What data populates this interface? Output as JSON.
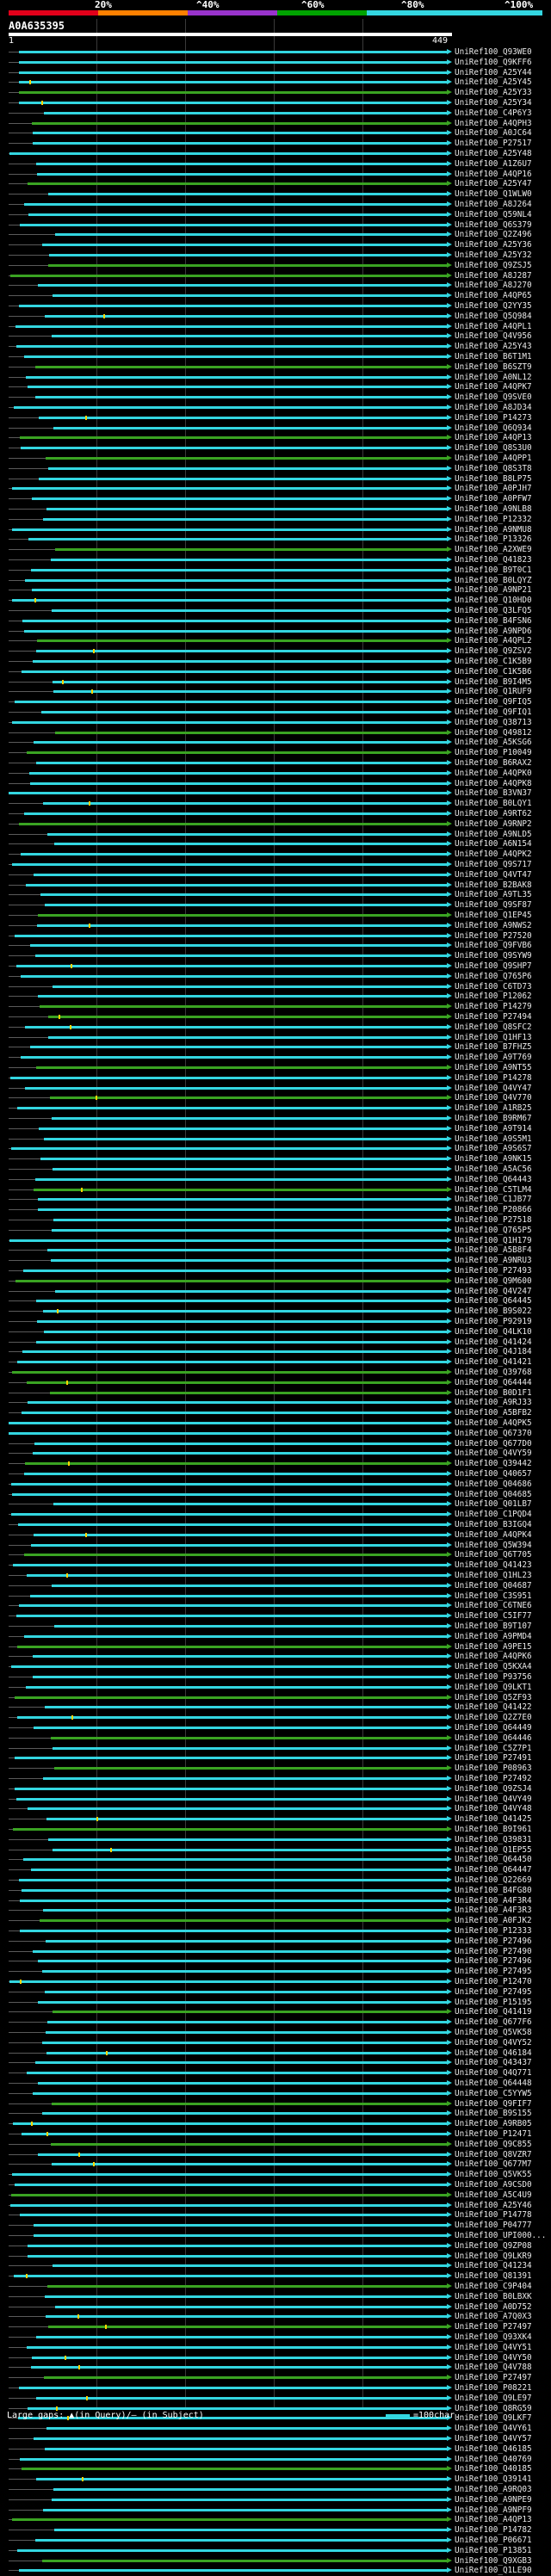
{
  "scale": {
    "labels": [
      "20%",
      "^40%",
      "^60%",
      "^80%",
      "^100%"
    ],
    "colors": [
      "#e2001a",
      "#ff8000",
      "#9933cc",
      "#00a300",
      "#33d6e0"
    ]
  },
  "query": {
    "name": "A0A635395",
    "start": "1",
    "end": "449"
  },
  "hits": [
    "UniRef100_Q93WE0",
    "UniRef100_Q9KFF6",
    "UniRef100_A25Y44",
    "UniRef100_A25Y45",
    "UniRef100_A25Y33",
    "UniRef100_A25Y34",
    "UniRef100_C4P6Y3",
    "UniRef100_A4QPH3",
    "UniRef100_A0JC64",
    "UniRef100_P27517",
    "UniRef100_A25Y48",
    "UniRef100_A1Z6U7",
    "UniRef100_A4QP16",
    "UniRef100_A25Y47",
    "UniRef100_Q1WLW0",
    "UniRef100_A8J264",
    "UniRef100_Q59NL4",
    "UniRef100_Q6S379",
    "UniRef100_Q2Z496",
    "UniRef100_A25Y36",
    "UniRef100_A25Y32",
    "UniRef100_Q9ZSJ5",
    "UniRef100_A8J287",
    "UniRef100_A8J270",
    "UniRef100_A4QP65",
    "UniRef100_Q2YY35",
    "UniRef100_Q5Q984",
    "UniRef100_A4QPL1",
    "UniRef100_Q4V956",
    "UniRef100_A25Y43",
    "UniRef100_B6T1M1",
    "UniRef100_B6SZT9",
    "UniRef100_A0NL12",
    "UniRef100_A4QPK7",
    "UniRef100_Q9SVE0",
    "UniRef100_A8JD34",
    "UniRef100_P14273",
    "UniRef100_Q6Q934",
    "UniRef100_A4QP13",
    "UniRef100_Q8S3U0",
    "UniRef100_A4QPP1",
    "UniRef100_Q8S3T8",
    "UniRef100_B8LP75",
    "UniRef100_A0PJH7",
    "UniRef100_A0PFW7",
    "UniRef100_A9NLB8",
    "UniRef100_P12332",
    "UniRef100_A9NMU8",
    "UniRef100_P13326",
    "UniRef100_A2XWE9",
    "UniRef100_Q41823",
    "UniRef100_B9T0C1",
    "UniRef100_B0LQYZ",
    "UniRef100_A9NP21",
    "UniRef100_Q10HD0",
    "UniRef100_Q3LFQ5",
    "UniRef100_B4FSN6",
    "UniRef100_A9NPD6",
    "UniRef100_A4QPL2",
    "UniRef100_Q9ZSV2",
    "UniRef100_C1K5B9",
    "UniRef100_C1K5B6",
    "UniRef100_B9I4M5",
    "UniRef100_Q1RUF9",
    "UniRef100_Q9FIQ5",
    "UniRef100_Q9FIQ1",
    "UniRef100_Q38713",
    "UniRef100_Q49812",
    "UniRef100_A5KSG6",
    "UniRef100_P10049",
    "UniRef100_B6RAX2",
    "UniRef100_A4QPK0",
    "UniRef100_A4QPK8",
    "UniRef100_B3VN37",
    "UniRef100_B0LQY1",
    "UniRef100_A9RT62",
    "UniRef100_A9RNP2",
    "UniRef100_A9NLD5",
    "UniRef100_A6N154",
    "UniRef100_A4QPK2",
    "UniRef100_Q9S717",
    "UniRef100_Q4VT47",
    "UniRef100_B2BAK8",
    "UniRef100_A9TL35",
    "UniRef100_Q9SF87",
    "UniRef100_Q1EP45",
    "UniRef100_A9NWS2",
    "UniRef100_P27520",
    "UniRef100_Q9FVB6",
    "UniRef100_Q9SYW9",
    "UniRef100_Q9SHP7",
    "UniRef100_Q765P6",
    "UniRef100_C6TD73",
    "UniRef100_P12062",
    "UniRef100_P14279",
    "UniRef100_P27494",
    "UniRef100_Q8SFC2",
    "UniRef100_Q1HF13",
    "UniRef100_B7FHZ5",
    "UniRef100_A9T769",
    "UniRef100_A9NT55",
    "UniRef100_P14278",
    "UniRef100_Q4VY47",
    "UniRef100_Q4V770",
    "UniRef100_A1RB25",
    "UniRef100_B9RM67",
    "UniRef100_A9T914",
    "UniRef100_A9S5M1",
    "UniRef100_A9S6S7",
    "UniRef100_A9NK15",
    "UniRef100_A5AC56",
    "UniRef100_Q64443",
    "UniRef100_C5TLM4",
    "UniRef100_C1JB77",
    "UniRef100_P20866",
    "UniRef100_P27518",
    "UniRef100_Q765P5",
    "UniRef100_Q1H179",
    "UniRef100_A5B8F4",
    "UniRef100_A9NRU3",
    "UniRef100_P27493",
    "UniRef100_Q9M600",
    "UniRef100_Q4V247",
    "UniRef100_Q64445",
    "UniRef100_B9S022",
    "UniRef100_P92919",
    "UniRef100_Q4LK10",
    "UniRef100_Q41424",
    "UniRef100_Q4J184",
    "UniRef100_Q41421",
    "UniRef100_Q39768",
    "UniRef100_Q64444",
    "UniRef100_B0D1F1",
    "UniRef100_A9RJ33",
    "UniRef100_A5BFB2",
    "UniRef100_A4QPK5",
    "UniRef100_Q67370",
    "UniRef100_Q677D0",
    "UniRef100_Q4VY59",
    "UniRef100_Q39442",
    "UniRef100_Q40657",
    "UniRef100_Q04686",
    "UniRef100_Q04685",
    "UniRef100_Q01LB7",
    "UniRef100_C1PQD4",
    "UniRef100_B3IGQ4",
    "UniRef100_A4QPK4",
    "UniRef100_Q5W394",
    "UniRef100_Q6T705",
    "UniRef100_Q41423",
    "UniRef100_Q1HL23",
    "UniRef100_Q04687",
    "UniRef100_C3S951",
    "UniRef100_C6TNE6",
    "UniRef100_C5IF77",
    "UniRef100_B9T107",
    "UniRef100_A9PMD4",
    "UniRef100_A9PE15",
    "UniRef100_A4QPK6",
    "UniRef100_Q5KXA4",
    "UniRef100_P93756",
    "UniRef100_Q9LKT1",
    "UniRef100_Q5ZF93",
    "UniRef100_Q41422",
    "UniRef100_Q2Z7E0",
    "UniRef100_Q64449",
    "UniRef100_Q64446",
    "UniRef100_C5Z7P1",
    "UniRef100_P27491",
    "UniRef100_P08963",
    "UniRef100_P27492",
    "UniRef100_Q9ZSJ4",
    "UniRef100_Q4VY49",
    "UniRef100_Q4VY48",
    "UniRef100_Q41425",
    "UniRef100_B9I961",
    "UniRef100_Q39831",
    "UniRef100_Q1EP55",
    "UniRef100_Q64450",
    "UniRef100_Q64447",
    "UniRef100_Q22669",
    "UniRef100_B4FG80",
    "UniRef100_A4F3R4",
    "UniRef100_A4F3R3",
    "UniRef100_A0FJK2",
    "UniRef100_P12333",
    "UniRef100_P27496",
    "UniRef100_P27490",
    "UniRef100_P27496",
    "UniRef100_P27495",
    "UniRef100_P12470",
    "UniRef100_P27495",
    "UniRef100_P15195",
    "UniRef100_Q41419",
    "UniRef100_Q677F6",
    "UniRef100_Q5VK58",
    "UniRef100_Q4VY52",
    "UniRef100_Q46184",
    "UniRef100_Q43437",
    "UniRef100_Q4Q771",
    "UniRef100_Q64448",
    "UniRef100_C5YYW5",
    "UniRef100_Q9FIF7",
    "UniRef100_B9S155",
    "UniRef100_A9RB05",
    "UniRef100_P12471",
    "UniRef100_Q9C855",
    "UniRef100_Q8VZR7",
    "UniRef100_Q677M7",
    "UniRef100_Q5VK55",
    "UniRef100_A9CSD0",
    "UniRef100_A5C4U9",
    "UniRef100_A25Y46",
    "UniRef100_P14778",
    "UniRef100_P04777",
    "UniRef100_UPI000...",
    "UniRef100_Q9ZP08",
    "UniRef100_Q9LKR9",
    "UniRef100_Q41234",
    "UniRef100_Q81391",
    "UniRef100_C9P404",
    "UniRef100_B0LBXK",
    "UniRef100_A0D752",
    "UniRef100_A7Q0X3",
    "UniRef100_P27497",
    "UniRef100_Q93XK4",
    "UniRef100_Q4VY51",
    "UniRef100_Q4VY50",
    "UniRef100_Q4V788",
    "UniRef100_P27497",
    "UniRef100_P08221",
    "UniRef100_Q9LE97",
    "UniRef100_Q8RG59",
    "UniRef100_Q9LKF7",
    "UniRef100_Q4VY61",
    "UniRef100_Q4VY57",
    "UniRef100_Q46185",
    "UniRef100_Q40769",
    "UniRef100_Q40185",
    "UniRef100_Q39141",
    "UniRef100_A9RQ03",
    "UniRef100_A9NPE9",
    "UniRef100_A9NPF9",
    "UniRef100_A4QP13",
    "UniRef100_P14782",
    "UniRef100_P06671",
    "UniRef100_P13851",
    "UniRef100_Q9XGB3",
    "UniRef100_Q1LE90"
  ],
  "legend": {
    "left": "Large gaps: ▲(in Query)/— (in Subject)",
    "right": "=100char."
  }
}
